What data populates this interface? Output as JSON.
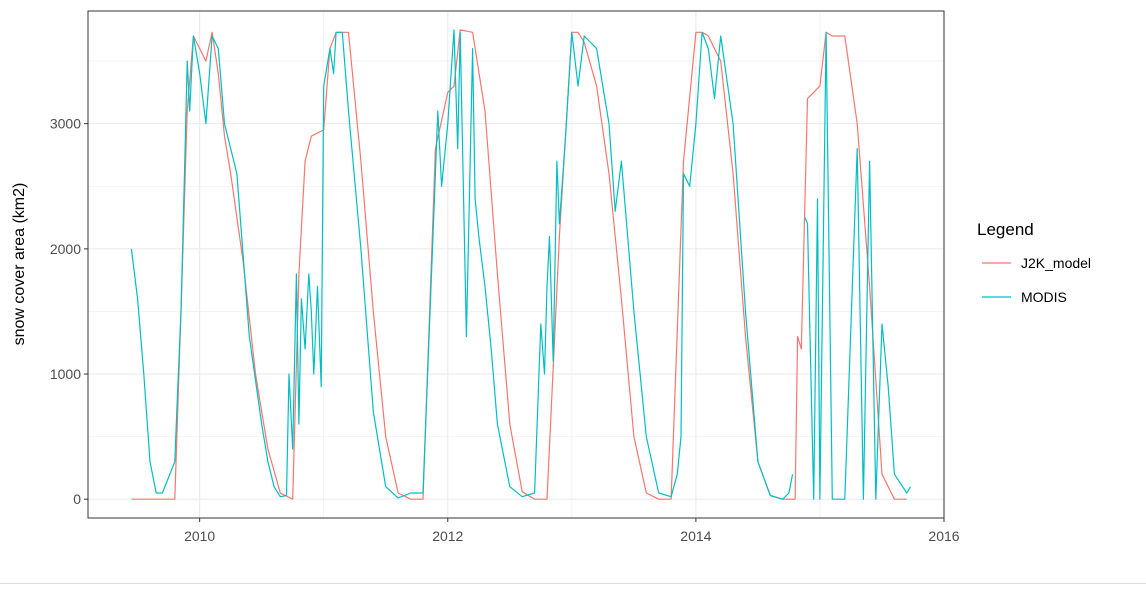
{
  "chart_data": {
    "type": "line",
    "title": "",
    "xlabel": "",
    "ylabel": "snow cover area (km2)",
    "xlim": [
      2009.1,
      2016.0
    ],
    "ylim": [
      -150,
      3900
    ],
    "x_ticks": [
      2010,
      2012,
      2014,
      2016
    ],
    "x_tick_labels": [
      "2010",
      "2012",
      "2014",
      "2016"
    ],
    "y_ticks": [
      0,
      1000,
      2000,
      3000
    ],
    "y_tick_labels": [
      "0",
      "1000",
      "2000",
      "3000"
    ],
    "grid": true,
    "legend": {
      "title": "Legend",
      "position": "right"
    },
    "series": [
      {
        "name": "J2K_model",
        "color": "#F8766D",
        "x": [
          2009.45,
          2009.6,
          2009.8,
          2009.85,
          2009.9,
          2009.95,
          2010.0,
          2010.05,
          2010.1,
          2010.15,
          2010.2,
          2010.25,
          2010.35,
          2010.45,
          2010.55,
          2010.65,
          2010.75,
          2010.8,
          2010.85,
          2010.9,
          2011.0,
          2011.05,
          2011.1,
          2011.2,
          2011.3,
          2011.4,
          2011.5,
          2011.6,
          2011.7,
          2011.8,
          2011.9,
          2012.0,
          2012.05,
          2012.1,
          2012.2,
          2012.3,
          2012.4,
          2012.5,
          2012.6,
          2012.7,
          2012.8,
          2012.9,
          2013.0,
          2013.05,
          2013.1,
          2013.2,
          2013.3,
          2013.4,
          2013.5,
          2013.6,
          2013.7,
          2013.8,
          2013.9,
          2014.0,
          2014.05,
          2014.1,
          2014.2,
          2014.3,
          2014.4,
          2014.5,
          2014.6,
          2014.7,
          2014.8,
          2014.82,
          2014.85,
          2014.9,
          2015.0,
          2015.05,
          2015.1,
          2015.2,
          2015.3,
          2015.4,
          2015.5,
          2015.6,
          2015.7
        ],
        "values": [
          0,
          0,
          0,
          1500,
          3100,
          3700,
          3600,
          3500,
          3730,
          3400,
          2900,
          2600,
          1900,
          1000,
          400,
          50,
          0,
          1800,
          2700,
          2900,
          2950,
          3600,
          3730,
          3730,
          2700,
          1500,
          500,
          50,
          0,
          0,
          2800,
          3250,
          3300,
          3750,
          3730,
          3100,
          1800,
          600,
          60,
          0,
          0,
          2100,
          3730,
          3730,
          3650,
          3300,
          2600,
          1600,
          500,
          50,
          0,
          0,
          2700,
          3730,
          3730,
          3700,
          3500,
          2600,
          1300,
          300,
          30,
          0,
          0,
          1300,
          1200,
          3200,
          3300,
          3730,
          3700,
          3700,
          3000,
          1700,
          200,
          0,
          0
        ]
      },
      {
        "name": "MODIS",
        "color": "#00BFC4",
        "x": [
          2009.45,
          2009.5,
          2009.55,
          2009.6,
          2009.65,
          2009.7,
          2009.8,
          2009.82,
          2009.85,
          2009.88,
          2009.9,
          2009.92,
          2009.95,
          2010.0,
          2010.05,
          2010.1,
          2010.15,
          2010.2,
          2010.3,
          2010.4,
          2010.5,
          2010.55,
          2010.6,
          2010.65,
          2010.7,
          2010.72,
          2010.75,
          2010.78,
          2010.8,
          2010.82,
          2010.85,
          2010.88,
          2010.9,
          2010.92,
          2010.95,
          2010.98,
          2011.0,
          2011.05,
          2011.08,
          2011.1,
          2011.15,
          2011.2,
          2011.3,
          2011.4,
          2011.5,
          2011.6,
          2011.7,
          2011.8,
          2011.9,
          2011.92,
          2011.95,
          2012.0,
          2012.05,
          2012.08,
          2012.1,
          2012.15,
          2012.2,
          2012.22,
          2012.25,
          2012.3,
          2012.35,
          2012.4,
          2012.5,
          2012.6,
          2012.7,
          2012.75,
          2012.78,
          2012.8,
          2012.82,
          2012.85,
          2012.88,
          2012.9,
          2012.95,
          2013.0,
          2013.05,
          2013.1,
          2013.2,
          2013.3,
          2013.35,
          2013.4,
          2013.5,
          2013.6,
          2013.7,
          2013.8,
          2013.85,
          2013.88,
          2013.9,
          2013.95,
          2014.0,
          2014.05,
          2014.1,
          2014.15,
          2014.2,
          2014.3,
          2014.4,
          2014.5,
          2014.6,
          2014.7,
          2014.75,
          2014.78,
          2014.85,
          2014.88,
          2014.9,
          2014.95,
          2014.98,
          2015.0,
          2015.05,
          2015.1,
          2015.15,
          2015.2,
          2015.3,
          2015.35,
          2015.4,
          2015.45,
          2015.5,
          2015.55,
          2015.6,
          2015.7,
          2015.73
        ],
        "values": [
          2000,
          1600,
          1000,
          300,
          50,
          50,
          300,
          800,
          1500,
          2700,
          3500,
          3100,
          3700,
          3400,
          3000,
          3700,
          3600,
          3000,
          2600,
          1300,
          600,
          300,
          100,
          20,
          30,
          1000,
          400,
          1800,
          600,
          1600,
          1200,
          1800,
          1500,
          1000,
          1700,
          900,
          3300,
          3600,
          3400,
          3730,
          3730,
          3100,
          2000,
          700,
          100,
          10,
          50,
          50,
          2600,
          3100,
          2500,
          3000,
          3750,
          2800,
          3730,
          1300,
          3600,
          2400,
          2100,
          1700,
          1200,
          600,
          100,
          20,
          50,
          1400,
          1000,
          1700,
          2100,
          1100,
          2700,
          2200,
          2900,
          3730,
          3300,
          3700,
          3600,
          3000,
          2300,
          2700,
          1500,
          500,
          50,
          20,
          200,
          500,
          2600,
          2500,
          3000,
          3730,
          3600,
          3200,
          3700,
          3000,
          1500,
          300,
          30,
          0,
          50,
          200,
          null,
          2250,
          2200,
          0,
          2400,
          0,
          3730,
          0,
          0,
          0,
          2800,
          0,
          2700,
          0,
          1400,
          900,
          200,
          50,
          100
        ]
      }
    ]
  }
}
